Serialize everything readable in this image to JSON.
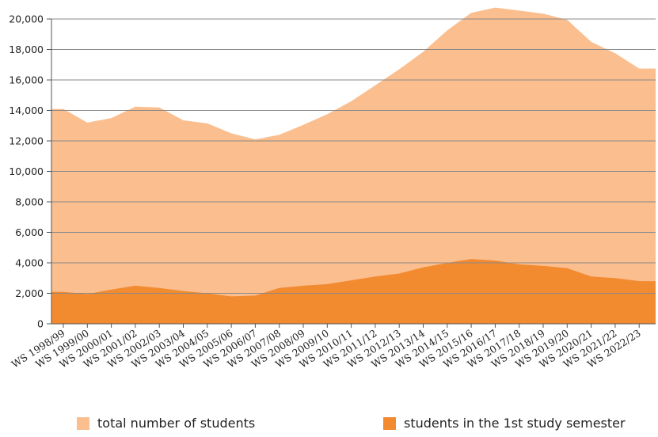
{
  "chart_data": {
    "type": "area",
    "categories": [
      "WS 1998/99",
      "WS 1999/00",
      "WS 2000/01",
      "WS 2001/02",
      "WS 2002/03",
      "WS 2003/04",
      "WS 2004/05",
      "WS 2005/06",
      "WS 2006/07",
      "WS 2007/08",
      "WS 2008/09",
      "WS 2009/10",
      "WS 2010/11",
      "WS 2011/12",
      "WS 2012/13",
      "WS 2013/14",
      "WS 2014/15",
      "WS 2015/16",
      "WS 2016/17",
      "WS 2017/18",
      "WS 2018/19",
      "WS 2019/20",
      "WS 2020/21",
      "WS 2021/22",
      "WS 2022/23"
    ],
    "series": [
      {
        "name": "total number of students",
        "color": "#fbbe8e",
        "values": [
          14100,
          13200,
          13500,
          14250,
          14200,
          13350,
          13150,
          12500,
          12100,
          12400,
          13050,
          13750,
          14600,
          15650,
          16700,
          17850,
          19250,
          20400,
          20750,
          20550,
          20350,
          19950,
          18500,
          17750,
          16750
        ]
      },
      {
        "name": "students in the 1st study semester",
        "color": "#f28a30",
        "values": [
          2100,
          1950,
          2250,
          2500,
          2350,
          2150,
          2000,
          1800,
          1850,
          2350,
          2500,
          2600,
          2850,
          3100,
          3300,
          3700,
          4000,
          4250,
          4150,
          3900,
          3800,
          3650,
          3100,
          3000,
          2800
        ]
      }
    ],
    "y_ticks": [
      "0",
      "2,000",
      "4,000",
      "6,000",
      "8,000",
      "10,000",
      "12,000",
      "14,000",
      "16,000",
      "18,000",
      "20,000"
    ],
    "ylim": [
      0,
      20000
    ],
    "grid": true,
    "legend_position": "bottom",
    "title": "",
    "xlabel": "",
    "ylabel": ""
  }
}
